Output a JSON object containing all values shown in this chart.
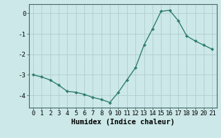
{
  "x": [
    0,
    1,
    2,
    3,
    4,
    5,
    6,
    7,
    8,
    9,
    10,
    11,
    12,
    13,
    14,
    15,
    16,
    17,
    18,
    19,
    20,
    21
  ],
  "y": [
    -3.0,
    -3.1,
    -3.25,
    -3.5,
    -3.8,
    -3.85,
    -3.95,
    -4.1,
    -4.2,
    -4.35,
    -3.85,
    -3.25,
    -2.65,
    -1.55,
    -0.75,
    0.1,
    0.15,
    -0.35,
    -1.1,
    -1.35,
    -1.55,
    -1.75
  ],
  "line_color": "#2e7d6e",
  "marker": "D",
  "markersize": 2.2,
  "linewidth": 1.0,
  "bg_color": "#cce8e8",
  "grid_color": "#b0cccc",
  "xlabel": "Humidex (Indice chaleur)",
  "xlim": [
    -0.5,
    21.5
  ],
  "ylim": [
    -4.6,
    0.45
  ],
  "yticks": [
    0,
    -1,
    -2,
    -3,
    -4
  ],
  "xticks": [
    0,
    1,
    2,
    3,
    4,
    5,
    6,
    7,
    8,
    9,
    10,
    11,
    12,
    13,
    14,
    15,
    16,
    17,
    18,
    19,
    20,
    21
  ],
  "tick_fontsize": 6.5,
  "xlabel_fontsize": 7.5,
  "spine_color": "#446666"
}
